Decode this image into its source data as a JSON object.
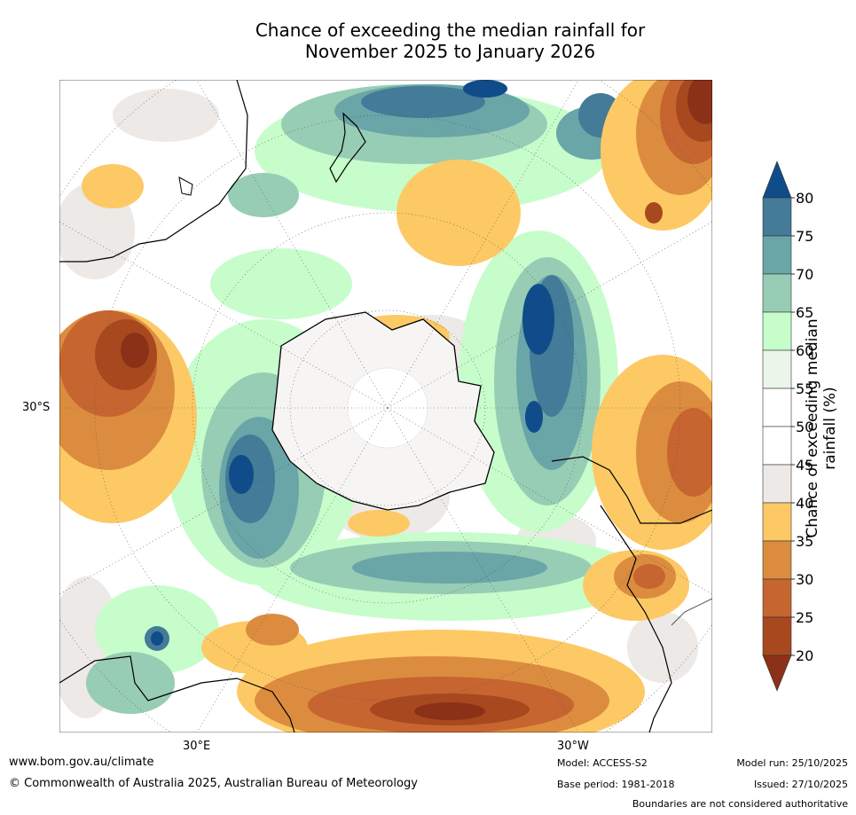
{
  "title": {
    "line1": "Chance of exceeding the median rainfall for",
    "line2": "November 2025 to January 2026"
  },
  "map": {
    "projection": "south-polar-stereographic",
    "lat_labels": [
      "30°S"
    ],
    "lon_labels": [
      "30°E",
      "30°W"
    ]
  },
  "legend": {
    "title": "Chance of exceeding median rainfall (%)",
    "ticks": [
      "20",
      "25",
      "30",
      "35",
      "40",
      "45",
      "50",
      "55",
      "60",
      "65",
      "70",
      "75",
      "80"
    ],
    "bins": [
      {
        "range": "<20",
        "color": "#8b3118"
      },
      {
        "range": "20-25",
        "color": "#a8481f"
      },
      {
        "range": "25-30",
        "color": "#c66530"
      },
      {
        "range": "30-35",
        "color": "#dc8c3f"
      },
      {
        "range": "35-40",
        "color": "#fdc965"
      },
      {
        "range": "40-45",
        "color": "#ece9e6"
      },
      {
        "range": "45-50",
        "color": "#ffffff"
      },
      {
        "range": "50-55",
        "color": "#ffffff"
      },
      {
        "range": "55-60",
        "color": "#e9f6e9"
      },
      {
        "range": "60-65",
        "color": "#c7fdcb"
      },
      {
        "range": "65-70",
        "color": "#97cdb4"
      },
      {
        "range": "70-75",
        "color": "#6aa5a8"
      },
      {
        "range": "75-80",
        "color": "#437b98"
      },
      {
        "range": ">80",
        "color": "#0f4c89"
      }
    ]
  },
  "footer": {
    "url": "www.bom.gov.au/climate",
    "copyright": "© Commonwealth of Australia 2025, Australian Bureau of Meteorology",
    "model": "Model: ACCESS-S2",
    "base_period": "Base period: 1981-2018",
    "model_run": "Model run: 25/10/2025",
    "issued": "Issued: 27/10/2025",
    "disclaimer": "Boundaries are not considered authoritative"
  }
}
